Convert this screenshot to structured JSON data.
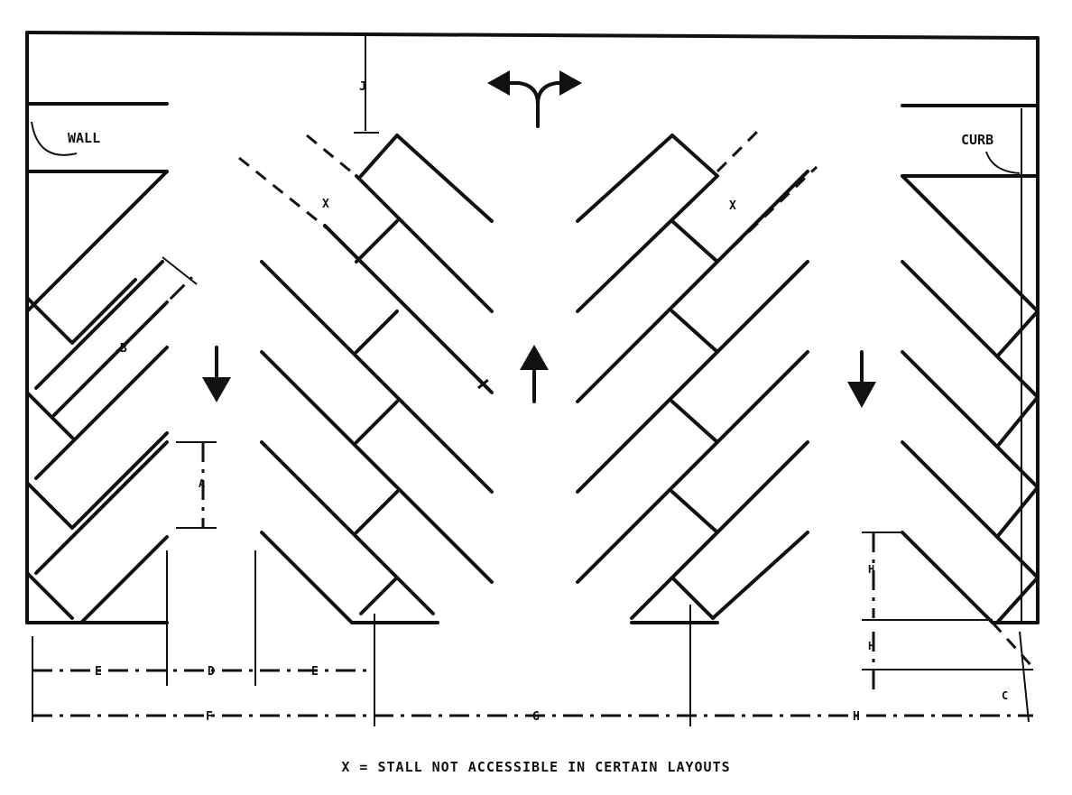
{
  "labels": {
    "wall": "WALL",
    "curb": "CURB",
    "footnote": "X = STALL NOT ACCESSIBLE IN CERTAIN LAYOUTS",
    "stall_marker_left": "X",
    "stall_marker_right": "X"
  },
  "dimension_labels": {
    "top_gap": "J",
    "stall_length": "B",
    "left_vertical": "A",
    "right_vertical_upper": "H",
    "right_vertical_lower": "H",
    "bottom_e1": "E",
    "bottom_d": "D",
    "bottom_e2": "E",
    "bottom_f": "F",
    "bottom_g": "G",
    "bottom_h": "H",
    "corner": "C"
  },
  "icons": [
    "two-way-arrow-icon",
    "down-arrow-icon",
    "up-arrow-icon",
    "down-arrow-icon"
  ]
}
